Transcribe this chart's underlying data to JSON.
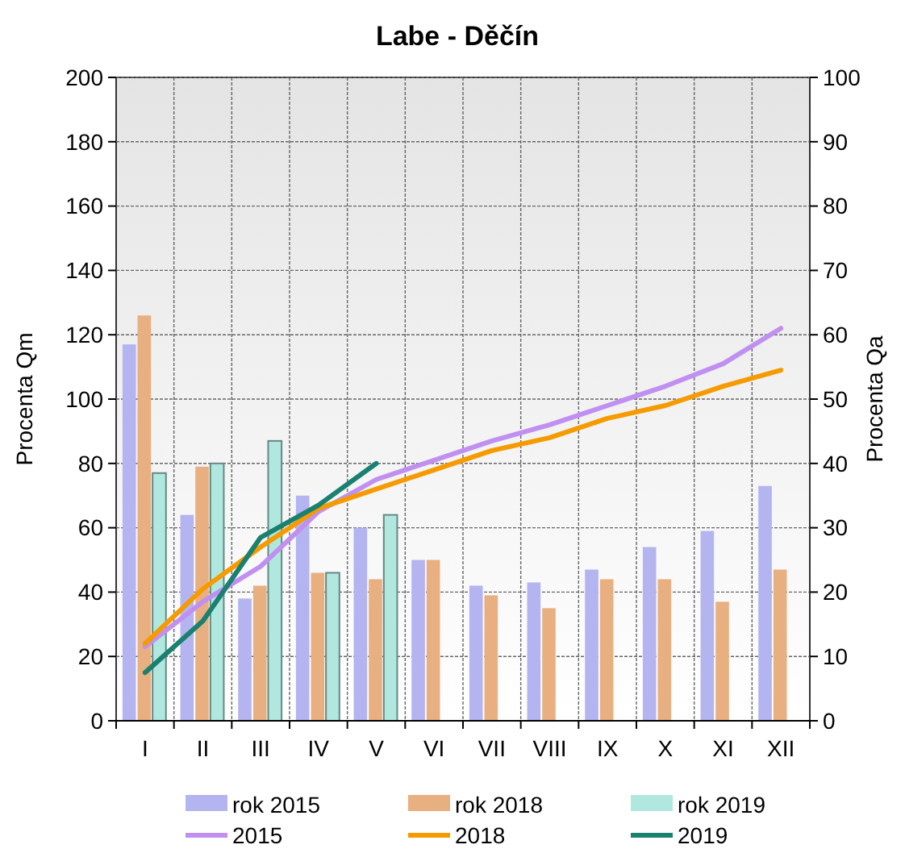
{
  "chart_data": {
    "type": "bar",
    "title": "Labe - Děčín",
    "ylabel": "Procenta Qm",
    "y2label": "Procenta Qa",
    "categories": [
      "I",
      "II",
      "III",
      "IV",
      "V",
      "VI",
      "VII",
      "VIII",
      "IX",
      "X",
      "XI",
      "XII"
    ],
    "ylim": [
      0,
      200
    ],
    "yticks": [
      0,
      20,
      40,
      60,
      80,
      100,
      120,
      140,
      160,
      180,
      200
    ],
    "y2lim": [
      0,
      100
    ],
    "y2ticks": [
      0,
      10,
      20,
      30,
      40,
      50,
      60,
      70,
      80,
      90,
      100
    ],
    "grid": true,
    "legend": "bottom",
    "series": [
      {
        "name": "rok 2015",
        "color": "#b4b4f0",
        "values": [
          117,
          64,
          38,
          70,
          60,
          50,
          42,
          43,
          47,
          54,
          59,
          73
        ]
      },
      {
        "name": "rok 2018",
        "color": "#e8b080",
        "values": [
          126,
          79,
          42,
          46,
          44,
          50,
          39,
          35,
          44,
          44,
          37,
          47
        ]
      },
      {
        "name": "rok 2019",
        "color": "#b0e8e0",
        "values": [
          77,
          80,
          87,
          46,
          64,
          null,
          null,
          null,
          null,
          null,
          null,
          null
        ]
      },
      {
        "name": "2015",
        "type": "line",
        "axis": "y2",
        "color": "#c090f0",
        "values": [
          11.5,
          18.5,
          24,
          32.5,
          37.5,
          40.5,
          43.5,
          46,
          49,
          52,
          55.5,
          61
        ]
      },
      {
        "name": "2018",
        "type": "line",
        "axis": "y2",
        "color": "#f59b00",
        "values": [
          12,
          20.5,
          27,
          33,
          36,
          39,
          42,
          44,
          47,
          49,
          52,
          54.5
        ]
      },
      {
        "name": "2019",
        "type": "line",
        "axis": "y2",
        "color": "#1a8070",
        "values": [
          7.5,
          15.5,
          28.5,
          33.5,
          40,
          null,
          null,
          null,
          null,
          null,
          null,
          null
        ]
      }
    ]
  }
}
